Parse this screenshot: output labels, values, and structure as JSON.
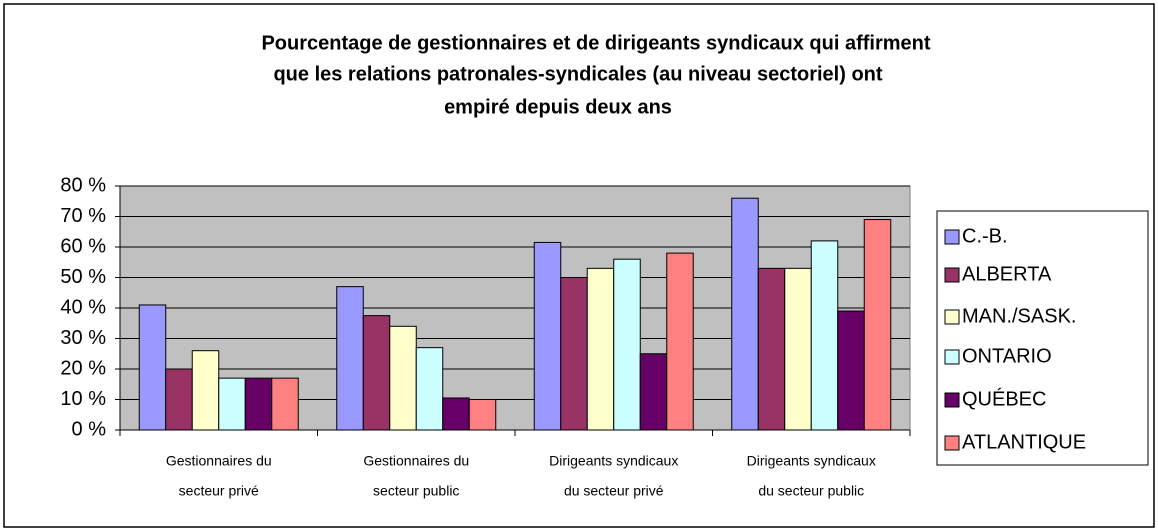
{
  "chart_data": {
    "type": "bar",
    "title": [
      "Pourcentage de gestionnaires et de dirigeants syndicaux qui affirment",
      "que les relations patronales-syndicales (au niveau sectoriel) ont",
      "empiré depuis deux ans"
    ],
    "categories": [
      [
        "Gestionnaires du",
        "secteur privé"
      ],
      [
        "Gestionnaires du",
        "secteur public"
      ],
      [
        "Dirigeants syndicaux",
        "du secteur privé"
      ],
      [
        "Dirigeants syndicaux",
        "du secteur public"
      ]
    ],
    "series": [
      {
        "name": "C.-B.",
        "color": "#9999ff",
        "values": [
          41,
          47,
          61.5,
          76
        ]
      },
      {
        "name": "ALBERTA",
        "color": "#993366",
        "values": [
          20,
          37.5,
          50,
          53
        ]
      },
      {
        "name": "MAN./SASK.",
        "color": "#ffffcc",
        "values": [
          26,
          34,
          53,
          53
        ]
      },
      {
        "name": "ONTARIO",
        "color": "#ccffff",
        "values": [
          17,
          27,
          56,
          62
        ]
      },
      {
        "name": "QUÉBEC",
        "color": "#660066",
        "values": [
          17,
          10.5,
          25,
          39
        ]
      },
      {
        "name": "ATLANTIQUE",
        "color": "#ff8080",
        "values": [
          17,
          10,
          58,
          69
        ]
      }
    ],
    "ylim": [
      0,
      80
    ],
    "yticks": [
      {
        "value": 0,
        "label": "0 %"
      },
      {
        "value": 10,
        "label": "10 %"
      },
      {
        "value": 20,
        "label": "20 %"
      },
      {
        "value": 30,
        "label": "30 %"
      },
      {
        "value": 40,
        "label": "40 %"
      },
      {
        "value": 50,
        "label": "50 %"
      },
      {
        "value": 60,
        "label": "60 %"
      },
      {
        "value": 70,
        "label": "70 %"
      },
      {
        "value": 80,
        "label": "80 %"
      }
    ],
    "grid": true,
    "legend": "right",
    "plot_background": "#c0c0c0"
  }
}
